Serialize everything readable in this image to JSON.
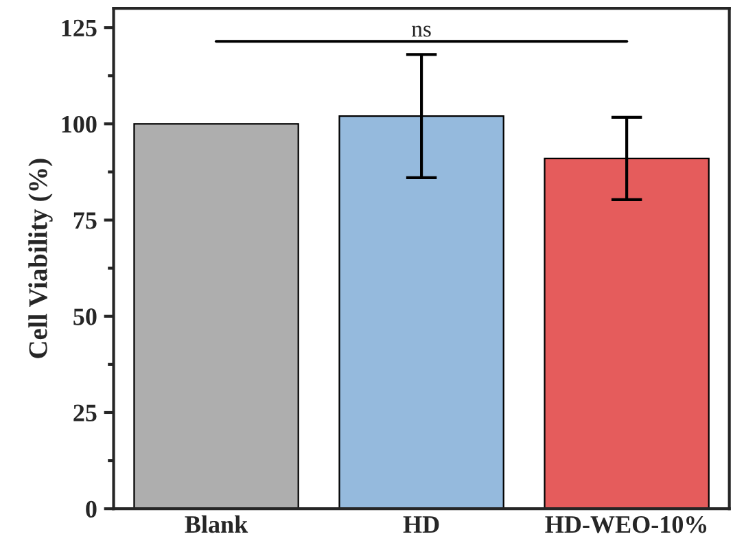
{
  "chart_data": {
    "type": "bar",
    "ylabel": "Cell Viability (%)",
    "categories": [
      "Blank",
      "HD",
      "HD-WEO-10%"
    ],
    "values": [
      100,
      102,
      91
    ],
    "errors": [
      null,
      16,
      10.7
    ],
    "colors": [
      "#aeaeae",
      "#95badd",
      "#e55c5c"
    ],
    "ylim": [
      0,
      130
    ],
    "yticks": [
      0,
      25,
      50,
      75,
      100,
      125
    ],
    "annotations": [
      "ns"
    ],
    "grid": false,
    "legend": false
  }
}
